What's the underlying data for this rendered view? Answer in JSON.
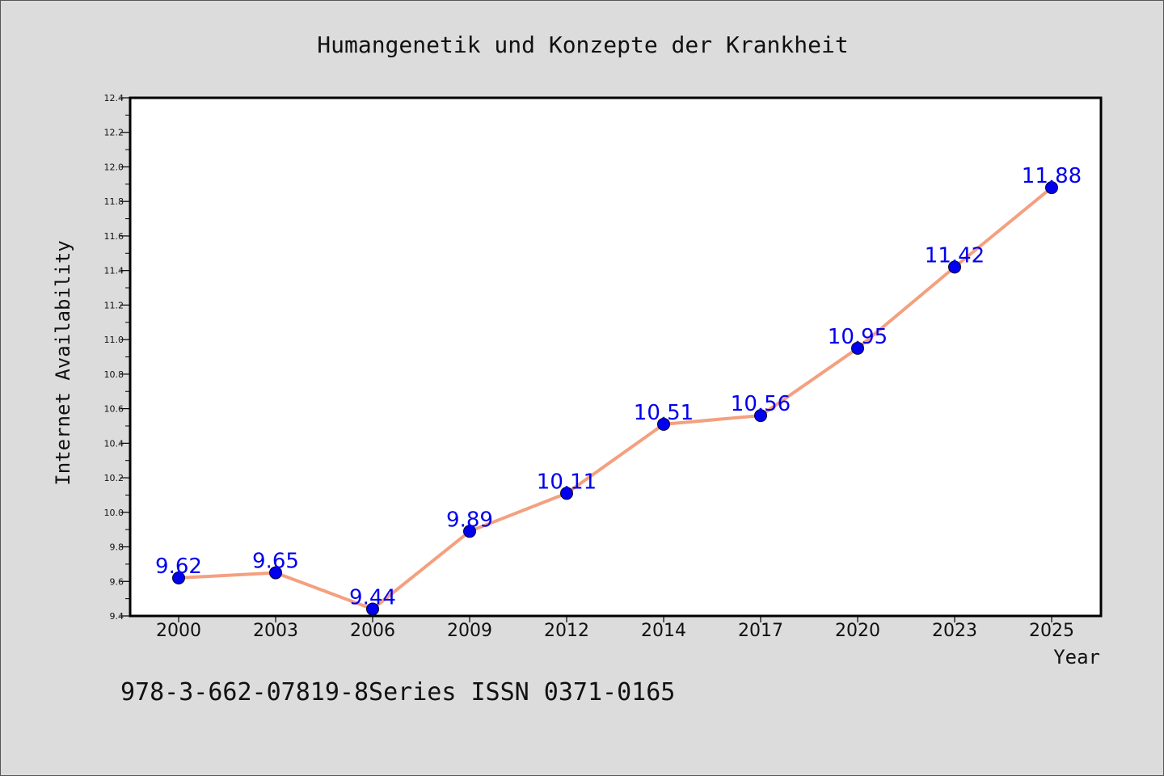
{
  "chart_data": {
    "type": "line",
    "title": "Humangenetik und Konzepte der Krankheit",
    "xlabel": "Year",
    "ylabel": "Internet Availability",
    "footer": "978-3-662-07819-8Series ISSN 0371-0165",
    "categories": [
      "2000",
      "2003",
      "2006",
      "2009",
      "2012",
      "2014",
      "2017",
      "2020",
      "2023",
      "2025"
    ],
    "series": [
      {
        "values": [
          9.62,
          9.65,
          9.44,
          9.89,
          10.11,
          10.51,
          10.56,
          10.95,
          11.42,
          11.88
        ],
        "labels": [
          "9.62",
          "9.65",
          "9.44",
          "9.89",
          "10.11",
          "10.51",
          "10.56",
          "10.95",
          "11.42",
          "11.88"
        ]
      }
    ],
    "ylim": [
      9.4,
      12.4
    ],
    "yticks": [
      "9.4",
      "9.6",
      "9.8",
      "10.0",
      "10.2",
      "10.4",
      "10.6",
      "10.8",
      "11.0",
      "11.2",
      "11.4",
      "11.6",
      "11.8",
      "12.0",
      "12.2",
      "12.4"
    ],
    "grid": false,
    "legend": "none",
    "colors": {
      "line": "#f4a07f",
      "marker": "#0000ee",
      "data_label": "#0000ee",
      "background": "#dcdcdc",
      "plot_area": "#ffffff"
    }
  }
}
